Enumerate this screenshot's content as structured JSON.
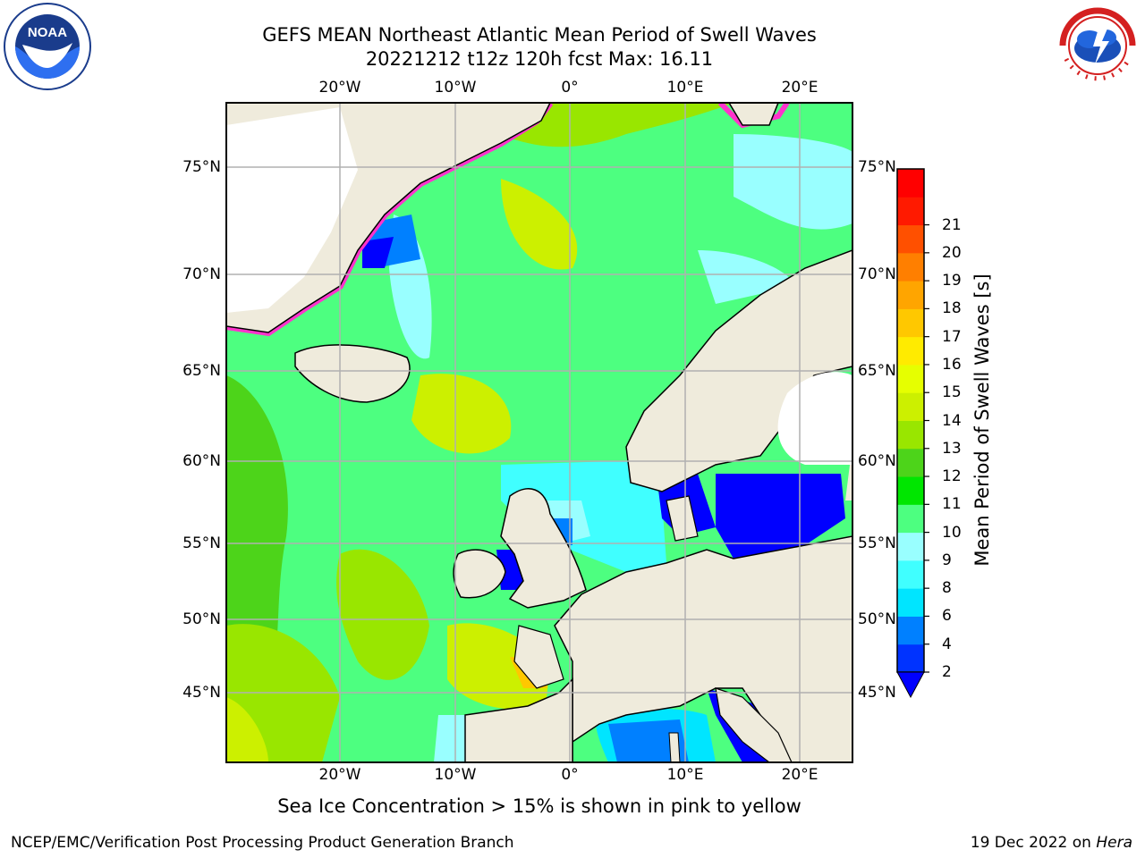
{
  "title": {
    "line1": "GEFS MEAN Northeast Atlantic Mean Period of Swell Waves",
    "line2": "20221212 t12z 120h fcst   Max: 16.11"
  },
  "map": {
    "lon_labels": [
      "20°W",
      "10°W",
      "0°",
      "10°E",
      "20°E"
    ],
    "lat_labels_left": [
      "75°N",
      "70°N",
      "65°N",
      "60°N",
      "55°N",
      "50°N",
      "45°N"
    ],
    "lat_labels_right": [
      "75°N",
      "70°N",
      "65°N",
      "60°N",
      "55°N",
      "50°N",
      "45°N"
    ],
    "land_color": "#efebdc",
    "grid_color": "#b0b0b0"
  },
  "colorbar": {
    "label": "Mean Period of Swell Waves [s]",
    "ticks": [
      "2",
      "4",
      "6",
      "8",
      "9",
      "10",
      "11",
      "12",
      "13",
      "14",
      "15",
      "16",
      "17",
      "18",
      "19",
      "20",
      "21"
    ],
    "colors": [
      "#0033ff",
      "#0080ff",
      "#00e5ff",
      "#40ffff",
      "#99ffff",
      "#4dff80",
      "#00e600",
      "#4dd41a",
      "#99e600",
      "#ccf000",
      "#e6ff00",
      "#ffeb00",
      "#ffc800",
      "#ffa500",
      "#ff7f00",
      "#ff5000",
      "#ff1a00",
      "#ff0000"
    ],
    "extend_color": "#0000ff"
  },
  "ice_note": "Sea Ice Concentration > 15% is shown in pink to yellow",
  "footer": {
    "left": "NCEP/EMC/Verification Post Processing Product Generation Branch",
    "date": "19 Dec 2022 on",
    "machine": "Hera"
  },
  "logos": {
    "left_icon": "noaa-logo",
    "right_icon": "nws-logo",
    "nws_text": "NATIONAL WEATHER SERVICE"
  }
}
